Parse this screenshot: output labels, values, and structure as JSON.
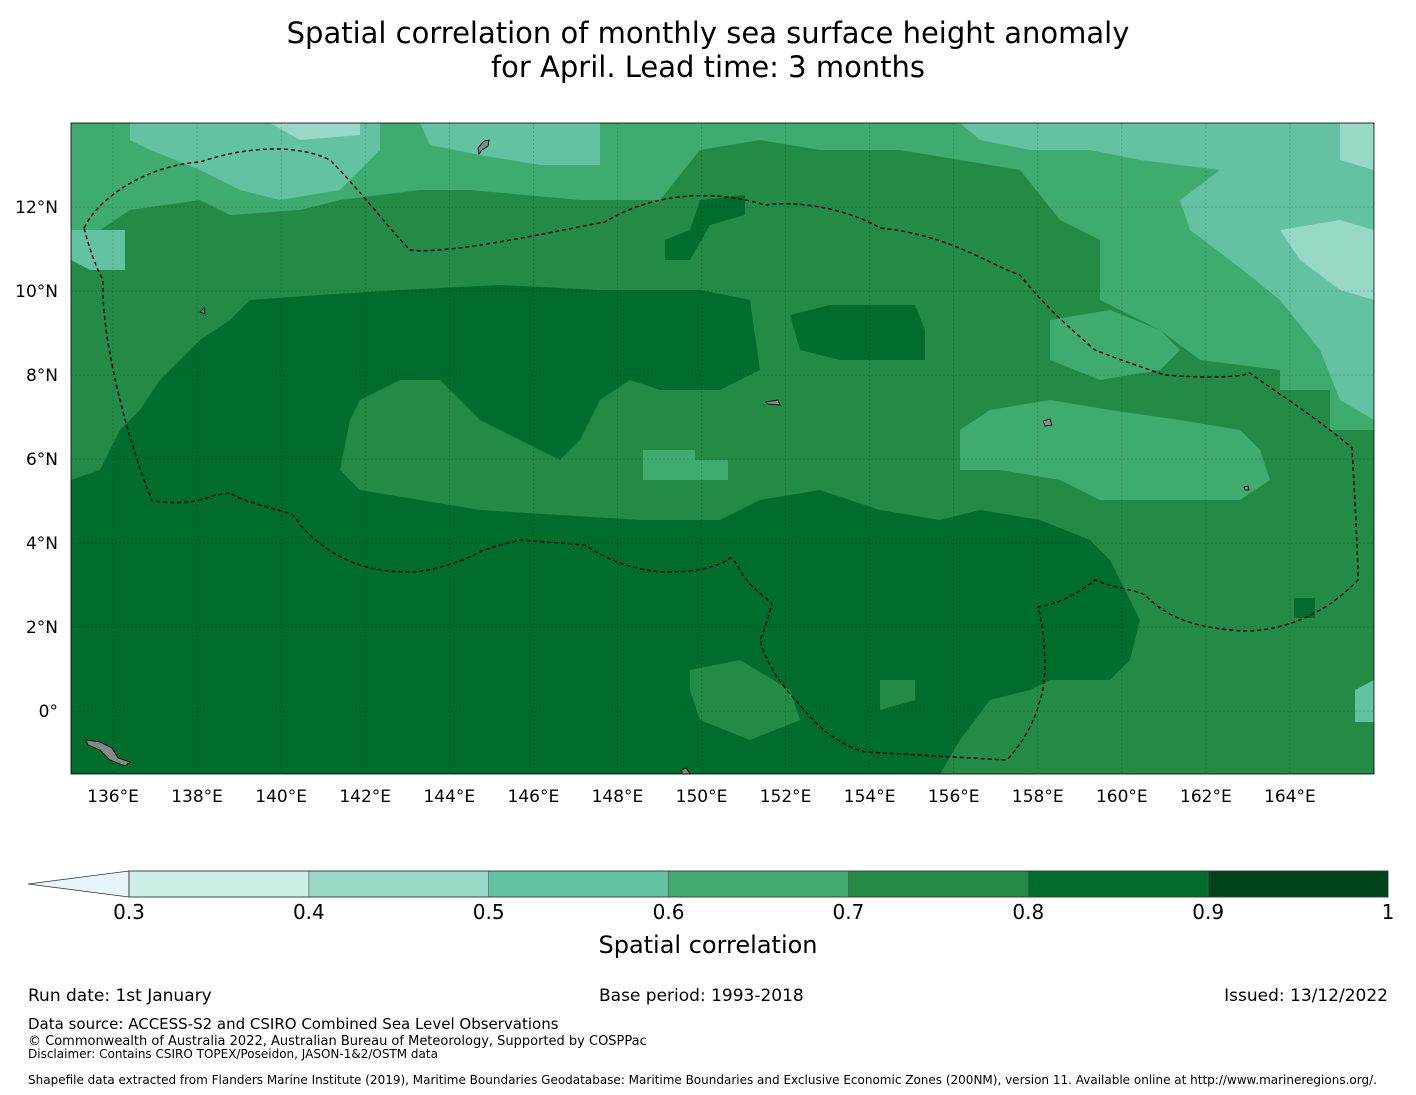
{
  "title": {
    "line1": "Spatial correlation of monthly sea surface height anomaly",
    "line2": "for April. Lead time: 3 months"
  },
  "map": {
    "lon_ticks": [
      "136°E",
      "138°E",
      "140°E",
      "142°E",
      "144°E",
      "146°E",
      "148°E",
      "150°E",
      "152°E",
      "154°E",
      "156°E",
      "158°E",
      "160°E",
      "162°E",
      "164°E"
    ],
    "lat_ticks": [
      "12°N",
      "10°N",
      "8°N",
      "6°N",
      "4°N",
      "2°N",
      "0°"
    ],
    "lon_range": [
      135,
      166
    ],
    "lat_range": [
      -1.5,
      14
    ],
    "colors": {
      "r03": "#cceee7",
      "r04": "#98d8c7",
      "r05": "#62c2a2",
      "r06": "#3fab6f",
      "r07": "#238b45",
      "r08": "#006d2c",
      "r09": "#00441b",
      "land": "#888888"
    }
  },
  "colorbar": {
    "labels": [
      "0.3",
      "0.4",
      "0.5",
      "0.6",
      "0.7",
      "0.8",
      "0.9",
      "1"
    ],
    "below_color": "#e5f5f9",
    "colors": [
      "#cceee7",
      "#98d8c7",
      "#62c2a2",
      "#3fab6f",
      "#238b45",
      "#006d2c",
      "#00441b"
    ],
    "title": "Spatial correlation"
  },
  "footer": {
    "run_date": "Run date: 1st January",
    "base_period": "Base period: 1993-2018",
    "issued": "Issued: 13/12/2022",
    "data_source": "Data source: ACCESS-S2 and CSIRO Combined Sea Level Observations",
    "copyright": "© Commonwealth of Australia 2022, Australian Bureau of Meteorology, Supported by COSPPac",
    "disclaimer": "Disclaimer: Contains CSIRO TOPEX/Poseidon, JASON-1&2/OSTM data",
    "shapefile": "Shapefile data extracted from Flanders Marine Institute (2019), Maritime Boundaries Geodatabase: Maritime Boundaries and Exclusive Economic Zones (200NM), version 11. Available online at http://www.marineregions.org/."
  }
}
